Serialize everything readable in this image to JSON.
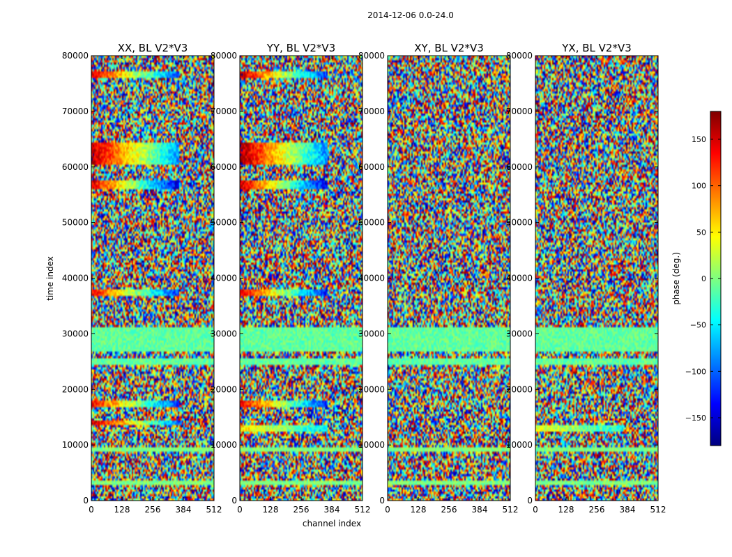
{
  "figure": {
    "suptitle": "2014-12-06 0.0-24.0",
    "xlabel": "channel index",
    "ylabel": "time index",
    "colorbar_label": "phase (deg.)"
  },
  "chart_data": {
    "type": "heatmap",
    "title": "2014-12-06 0.0-24.0",
    "xlabel": "channel index",
    "ylabel": "time index",
    "x_range": [
      0,
      512
    ],
    "y_range": [
      0,
      80000
    ],
    "x_ticks": [
      0,
      128,
      256,
      384,
      512
    ],
    "y_ticks": [
      0,
      10000,
      20000,
      30000,
      40000,
      50000,
      60000,
      70000,
      80000
    ],
    "colorbar": {
      "label": "phase (deg.)",
      "range": [
        -180,
        180
      ],
      "ticks": [
        -150,
        -100,
        -50,
        0,
        50,
        100,
        150
      ],
      "tick_labels": [
        "−150",
        "−100",
        "−50",
        "0",
        "50",
        "100",
        "150"
      ],
      "colormap": [
        "#00007f",
        "#0000ff",
        "#007fff",
        "#00ffff",
        "#7fff7f",
        "#ffff00",
        "#ff7f00",
        "#ff0000",
        "#7f0000"
      ]
    },
    "panels": [
      {
        "title": "XX, BL V2*V3",
        "coherent_bands": [
          {
            "t_start": 76000,
            "t_end": 77200,
            "phase_start": 150,
            "phase_end": -110
          },
          {
            "t_start": 60500,
            "t_end": 64500,
            "phase_start": 160,
            "phase_end": -80
          },
          {
            "t_start": 56000,
            "t_end": 57500,
            "phase_start": 150,
            "phase_end": -150
          },
          {
            "t_start": 36800,
            "t_end": 37800,
            "phase_start": 140,
            "phase_end": -120
          },
          {
            "t_start": 17000,
            "t_end": 17900,
            "phase_start": 140,
            "phase_end": -120
          },
          {
            "t_start": 13600,
            "t_end": 14200,
            "phase_start": 160,
            "phase_end": -100
          }
        ],
        "flat_bands": [
          {
            "t_start": 27000,
            "t_end": 31000,
            "phase": -10
          },
          {
            "t_start": 24500,
            "t_end": 25500,
            "phase": -10
          },
          {
            "t_start": 8800,
            "t_end": 9400,
            "phase": 0
          },
          {
            "t_start": 2800,
            "t_end": 3400,
            "phase": 0
          }
        ]
      },
      {
        "title": "YY, BL V2*V3",
        "coherent_bands": [
          {
            "t_start": 76000,
            "t_end": 77200,
            "phase_start": 160,
            "phase_end": -120
          },
          {
            "t_start": 60500,
            "t_end": 64500,
            "phase_start": 170,
            "phase_end": -90
          },
          {
            "t_start": 56000,
            "t_end": 57500,
            "phase_start": 160,
            "phase_end": -150
          },
          {
            "t_start": 36800,
            "t_end": 37800,
            "phase_start": 150,
            "phase_end": -130
          },
          {
            "t_start": 17000,
            "t_end": 17900,
            "phase_start": 150,
            "phase_end": -130
          },
          {
            "t_start": 12600,
            "t_end": 13400,
            "phase_start": 60,
            "phase_end": -60
          }
        ],
        "flat_bands": [
          {
            "t_start": 27000,
            "t_end": 31000,
            "phase": -10
          },
          {
            "t_start": 24500,
            "t_end": 25500,
            "phase": -10
          },
          {
            "t_start": 8800,
            "t_end": 9400,
            "phase": 0
          },
          {
            "t_start": 2800,
            "t_end": 3400,
            "phase": 0
          }
        ]
      },
      {
        "title": "XY, BL V2*V3",
        "coherent_bands": [],
        "flat_bands": [
          {
            "t_start": 27000,
            "t_end": 31000,
            "phase": -10
          },
          {
            "t_start": 24500,
            "t_end": 25500,
            "phase": -10
          },
          {
            "t_start": 8800,
            "t_end": 9400,
            "phase": 0
          },
          {
            "t_start": 2800,
            "t_end": 3400,
            "phase": 0
          }
        ]
      },
      {
        "title": "YX, BL V2*V3",
        "coherent_bands": [
          {
            "t_start": 12600,
            "t_end": 13400,
            "phase_start": 40,
            "phase_end": -40
          }
        ],
        "flat_bands": [
          {
            "t_start": 27000,
            "t_end": 31000,
            "phase": -10
          },
          {
            "t_start": 24500,
            "t_end": 25500,
            "phase": -10
          },
          {
            "t_start": 8800,
            "t_end": 9400,
            "phase": 0
          },
          {
            "t_start": 2800,
            "t_end": 3400,
            "phase": 0
          }
        ]
      }
    ]
  }
}
